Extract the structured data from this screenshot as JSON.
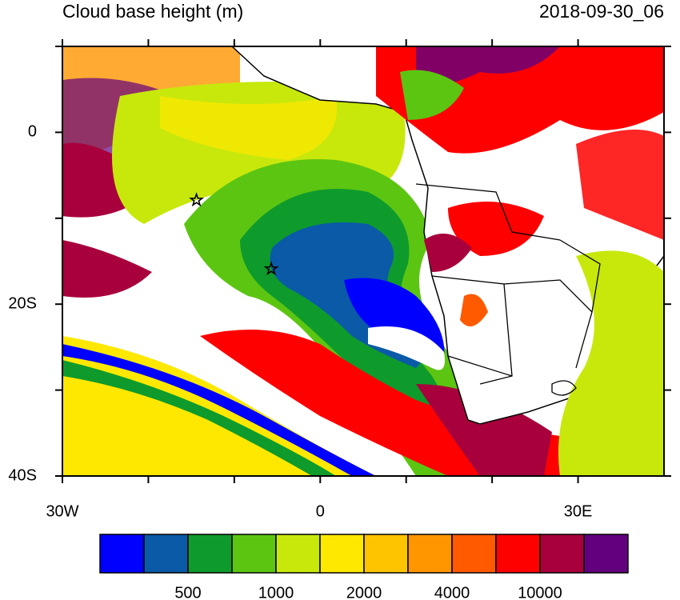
{
  "title": "Cloud base height (m)",
  "timestamp": "2018-09-30_06",
  "lon_range": [
    -30,
    40
  ],
  "lat_range": [
    -40,
    10
  ],
  "lon_ticks": [
    {
      "value": -30,
      "label": "30W"
    },
    {
      "value": 0,
      "label": "0"
    },
    {
      "value": 30,
      "label": "30E"
    }
  ],
  "lat_ticks": [
    {
      "value": 0,
      "label": "0"
    },
    {
      "value": -20,
      "label": "20S"
    },
    {
      "value": -40,
      "label": "40S"
    }
  ],
  "lon_minor_ticks": [
    -20,
    -10,
    10,
    20
  ],
  "lat_minor_ticks": [
    10,
    -10,
    -30
  ],
  "stations": [
    {
      "lon": -14.4,
      "lat": -7.9
    },
    {
      "lon": -5.7,
      "lat": -15.9
    }
  ],
  "colorbar": {
    "colors": [
      "#0000ff",
      "#0a5aa8",
      "#0e9b2c",
      "#5cc512",
      "#c8e80c",
      "#ffe800",
      "#ffc400",
      "#ff9600",
      "#ff5a00",
      "#ff0000",
      "#a8003c",
      "#62007e"
    ],
    "labels": [
      500,
      1000,
      2000,
      4000,
      10000
    ]
  }
}
